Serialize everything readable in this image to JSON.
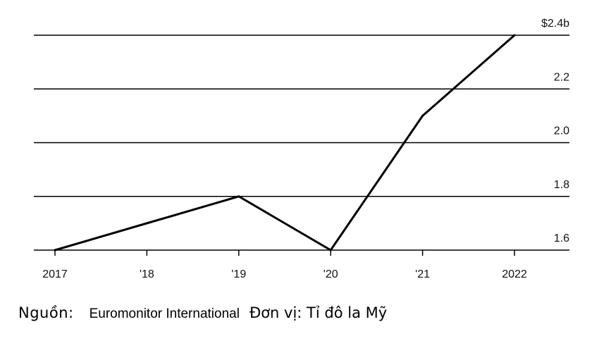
{
  "chart_data": {
    "type": "line",
    "x": [
      "2017",
      "'18",
      "'19",
      "'20",
      "'21",
      "2022"
    ],
    "series": [
      {
        "values": [
          1.6,
          1.7,
          1.8,
          1.6,
          2.1,
          2.4
        ]
      }
    ],
    "y_ticks": [
      {
        "value": 2.4,
        "label": "$2.4b"
      },
      {
        "value": 2.2,
        "label": "2.2"
      },
      {
        "value": 2.0,
        "label": "2.0"
      },
      {
        "value": 1.8,
        "label": "1.8"
      },
      {
        "value": 1.6,
        "label": "1.6"
      }
    ],
    "ylim": [
      1.6,
      2.4
    ],
    "title": "",
    "xlabel": "",
    "ylabel": "",
    "grid": true,
    "line_color": "#000000"
  },
  "footer": {
    "source_label": "Nguồn:",
    "source_value": "Euromonitor International",
    "unit": "Đơn vị: Tỉ đô la Mỹ"
  }
}
